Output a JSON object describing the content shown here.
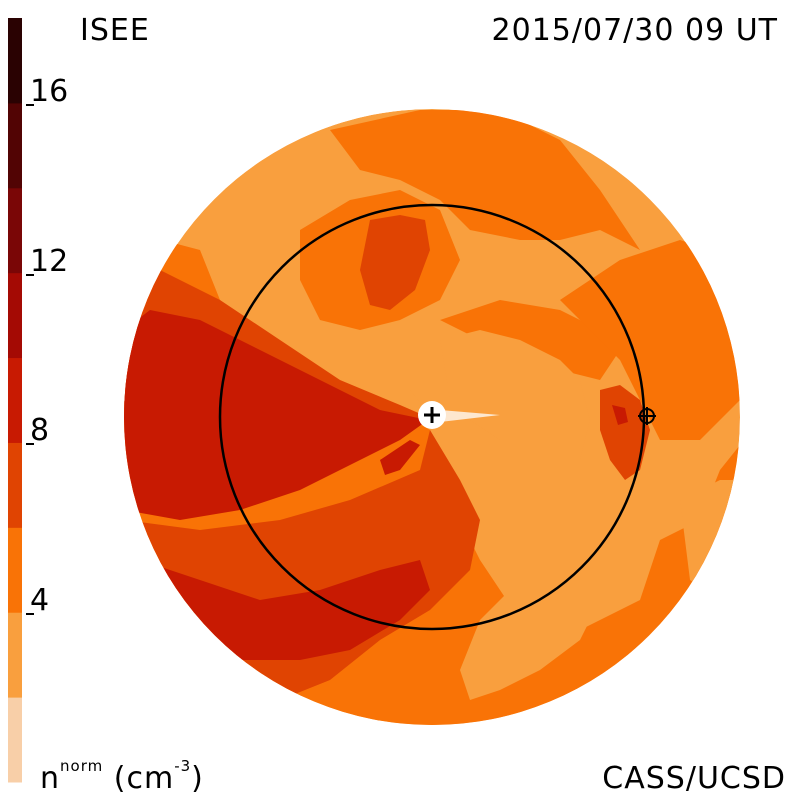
{
  "header": {
    "source": "ISEE",
    "datetime": "2015/07/30 09 UT"
  },
  "footer": {
    "credit": "CASS/UCSD"
  },
  "colorbar": {
    "unit_main": "n",
    "unit_sup": "norm",
    "unit_paren_open": " (cm",
    "unit_paren_sup": "-3",
    "unit_paren_close": ")",
    "ticks": [
      {
        "value": 16,
        "label": "16"
      },
      {
        "value": 12,
        "label": "12"
      },
      {
        "value": 8,
        "label": "8"
      },
      {
        "value": 4,
        "label": "4"
      }
    ],
    "min": 0,
    "max": 18,
    "bands": [
      {
        "from": 0,
        "to": 2,
        "color": "#f8cfa8"
      },
      {
        "from": 2,
        "to": 4,
        "color": "#f99f3e"
      },
      {
        "from": 4,
        "to": 6,
        "color": "#f97306"
      },
      {
        "from": 6,
        "to": 8,
        "color": "#e04402"
      },
      {
        "from": 8,
        "to": 10,
        "color": "#c81a02"
      },
      {
        "from": 10,
        "to": 12,
        "color": "#a40a04"
      },
      {
        "from": 12,
        "to": 14,
        "color": "#7a0606"
      },
      {
        "from": 14,
        "to": 16,
        "color": "#520404"
      },
      {
        "from": 16,
        "to": 18,
        "color": "#2a0202"
      }
    ]
  },
  "map": {
    "background_color": "#f99f3e",
    "earth_marker": "circle-with-cross",
    "sun_marker": "white-disk-with-plus",
    "orbit_color": "#000000"
  }
}
